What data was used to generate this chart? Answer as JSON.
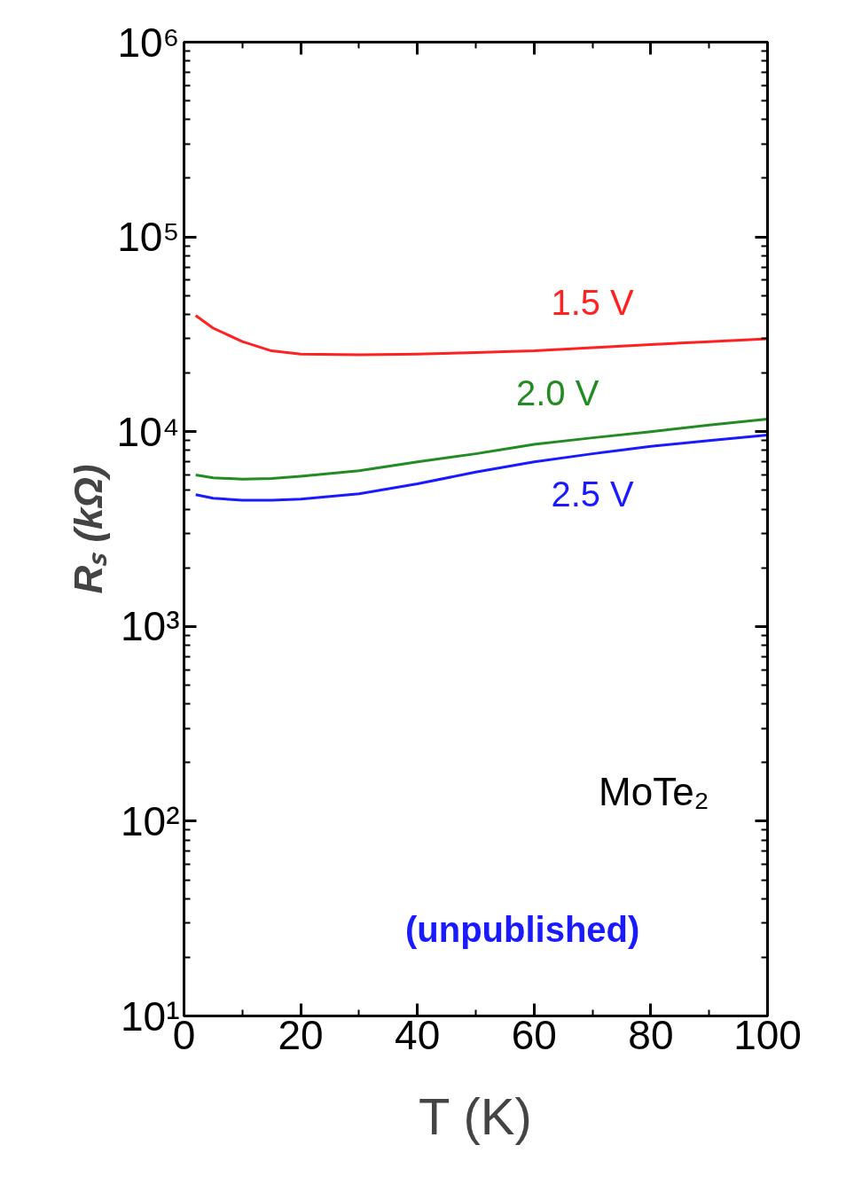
{
  "chart_data": {
    "type": "line",
    "xlabel": "T (K)",
    "ylabel": "Rₛ (kΩ)",
    "x": [
      2,
      5,
      10,
      15,
      20,
      30,
      40,
      50,
      60,
      70,
      80,
      90,
      100
    ],
    "series": [
      {
        "name": "1.5 V",
        "color": "#ff2020",
        "values": [
          39500,
          34000,
          29000,
          26000,
          25000,
          24800,
          25000,
          25500,
          26000,
          27000,
          28000,
          29000,
          30000
        ]
      },
      {
        "name": "2.0 V",
        "color": "#228b22",
        "values": [
          6000,
          5800,
          5700,
          5750,
          5900,
          6300,
          7000,
          7700,
          8600,
          9300,
          10000,
          10800,
          11600
        ]
      },
      {
        "name": "2.5 V",
        "color": "#1a1aff",
        "values": [
          4750,
          4550,
          4450,
          4450,
          4500,
          4800,
          5400,
          6200,
          7000,
          7700,
          8400,
          9000,
          9600
        ]
      }
    ],
    "xlim": [
      0,
      100
    ],
    "xticks": [
      0,
      20,
      40,
      60,
      80,
      100
    ],
    "ylim": [
      10,
      1000000
    ],
    "log": true,
    "yticks": [
      {
        "value": 10,
        "label": "10¹"
      },
      {
        "value": 100,
        "label": "10²"
      },
      {
        "value": 1000,
        "label": "10³"
      },
      {
        "value": 10000,
        "label": "10⁴"
      },
      {
        "value": 100000,
        "label": "10⁵"
      },
      {
        "value": 1000000,
        "label": "10⁶"
      }
    ],
    "annotations": [
      "MoTe₂",
      "(unpublished)"
    ],
    "grid": false,
    "legend": false,
    "line_style": "solid",
    "marker": "none"
  }
}
